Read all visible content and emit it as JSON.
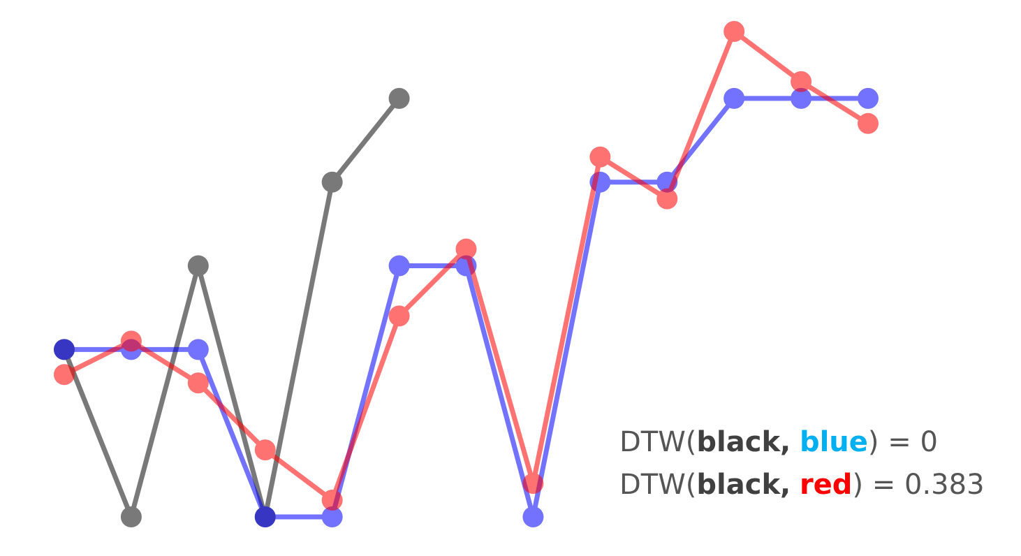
{
  "chart_data": {
    "type": "line",
    "title": "",
    "xlabel": "",
    "ylabel": "",
    "x": [
      0,
      1,
      2,
      3,
      4,
      5,
      6,
      7,
      8,
      9,
      10,
      11,
      12
    ],
    "xlim": [
      -0.05,
      12.05
    ],
    "ylim": [
      -0.05,
      3.05
    ],
    "grid": false,
    "legend": "none",
    "series": [
      {
        "id": "black",
        "color": "#333333",
        "x": [
          0,
          1,
          2,
          3,
          4,
          5
        ],
        "values": [
          1,
          0,
          1.5,
          0,
          2,
          2.5
        ]
      },
      {
        "id": "blue",
        "color": "#0000ff",
        "x": [
          0,
          1,
          2,
          3,
          4,
          5,
          6,
          7,
          8,
          9,
          10,
          11,
          12
        ],
        "values": [
          1,
          1,
          1,
          0,
          0,
          1.5,
          1.5,
          0,
          2,
          2,
          2.5,
          2.5,
          2.5
        ]
      },
      {
        "id": "red",
        "color": "#ff0000",
        "x": [
          0,
          1,
          2,
          3,
          4,
          5,
          6,
          7,
          8,
          9,
          10,
          11,
          12
        ],
        "values": [
          0.85,
          1.05,
          0.8,
          0.4,
          0.1,
          1.2,
          1.6,
          0.2,
          2.15,
          1.9,
          2.9,
          2.6,
          2.35
        ]
      }
    ]
  },
  "annotations": [
    {
      "prefix": "DTW(",
      "first": "black,",
      "second": "blue",
      "second_color": "#00b0f0",
      "suffix": ") = 0"
    },
    {
      "prefix": "DTW(",
      "first": "black,",
      "second": "red",
      "second_color": "#ff0000",
      "suffix": ") = 0.383"
    }
  ]
}
